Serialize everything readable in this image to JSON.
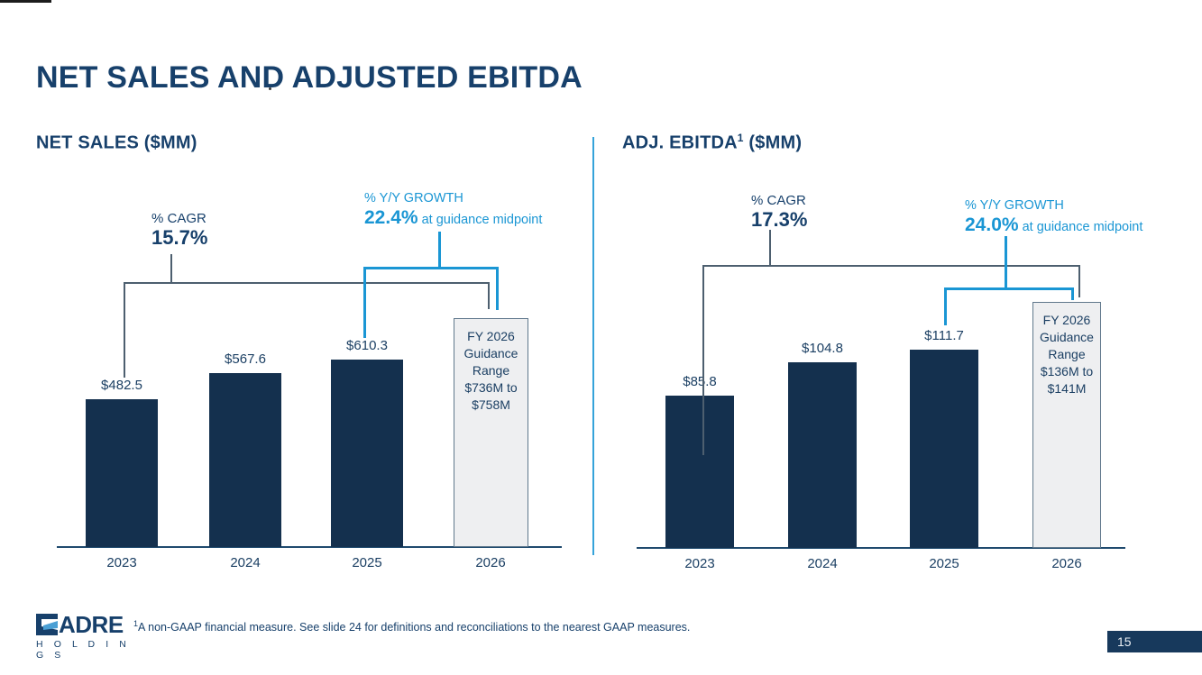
{
  "slide": {
    "title": "NET SALES AND ADJUSTED EBITDA",
    "page_number": "15",
    "footnote_superscript": "1",
    "footnote": "A non-GAAP financial measure. See slide 24 for definitions and reconciliations to the nearest GAAP measures.",
    "logo": {
      "brand": "ADRE",
      "subtext": "H O L D I N G S"
    }
  },
  "colors": {
    "navy_text": "#17406b",
    "bar_fill": "#14304e",
    "accent_blue": "#1a96d4",
    "bracket_gray": "#4d5f6f",
    "guidance_fill": "#eeeff1",
    "guidance_border": "#60788c",
    "divider_blue": "#35a3da",
    "badge_bg": "#17395c"
  },
  "chart_data": [
    {
      "type": "bar",
      "title": "NET SALES ($MM)",
      "title_sup": "",
      "title_suffix": "",
      "categories": [
        "2023",
        "2024",
        "2025",
        "2026"
      ],
      "values": [
        482.5,
        567.6,
        610.3
      ],
      "value_labels": [
        "$482.5",
        "$567.6",
        "$610.3"
      ],
      "guidance": {
        "lines": [
          "FY 2026",
          "Guidance",
          "Range",
          "$736M to",
          "$758M"
        ],
        "low": 736,
        "high": 758,
        "midpoint": 747
      },
      "cagr": {
        "label": "% CAGR",
        "value": "15.7%"
      },
      "yoy": {
        "label": "% Y/Y GROWTH",
        "value": "22.4%",
        "suffix": " at guidance midpoint"
      },
      "ylabel": "",
      "grid": false,
      "legend": "none",
      "y_axis_ticks": "none"
    },
    {
      "type": "bar",
      "title": "ADJ. EBITDA",
      "title_sup": "1",
      "title_suffix": " ($MM)",
      "categories": [
        "2023",
        "2024",
        "2025",
        "2026"
      ],
      "values": [
        85.8,
        104.8,
        111.7
      ],
      "value_labels": [
        "$85.8",
        "$104.8",
        "$111.7"
      ],
      "guidance": {
        "lines": [
          "FY 2026",
          "Guidance",
          "Range",
          "$136M to",
          "$141M"
        ],
        "low": 136,
        "high": 141,
        "midpoint": 138.5
      },
      "cagr": {
        "label": "% CAGR",
        "value": "17.3%"
      },
      "yoy": {
        "label": "% Y/Y GROWTH",
        "value": "24.0%",
        "suffix": " at guidance midpoint"
      },
      "ylabel": "",
      "grid": false,
      "legend": "none",
      "y_axis_ticks": "none"
    }
  ]
}
